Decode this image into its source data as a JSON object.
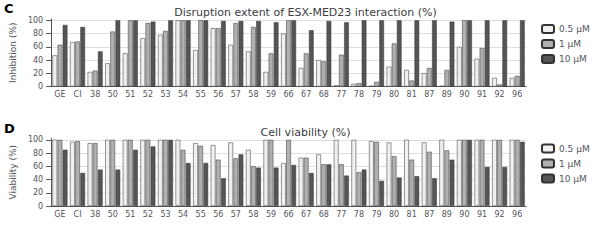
{
  "chart_data": [
    {
      "type": "bar",
      "title": "Disruption extent of ESX-MED23 interaction (%)",
      "ylabel": "Inhibition (%)",
      "panel_label": "C",
      "categories": [
        "GE",
        "CI",
        "38",
        "50",
        "51",
        "52",
        "53",
        "54",
        "55",
        "56",
        "57",
        "58",
        "59",
        "66",
        "67",
        "68",
        "77",
        "78",
        "79",
        "80",
        "81",
        "87",
        "89",
        "90",
        "91",
        "92",
        "96"
      ],
      "series": [
        {
          "name": "0.5 μM",
          "color": "#f0f0f0",
          "values": [
            47,
            67,
            22,
            35,
            50,
            73,
            78,
            100,
            55,
            88,
            63,
            53,
            22,
            80,
            28,
            40,
            2,
            4,
            1,
            30,
            25,
            20,
            1,
            60,
            42,
            13,
            13
          ]
        },
        {
          "name": "1 μM",
          "color": "#b0b0b0",
          "values": [
            63,
            68,
            24,
            83,
            100,
            96,
            84,
            100,
            100,
            88,
            96,
            90,
            50,
            100,
            50,
            38,
            48,
            5,
            7,
            65,
            9,
            28,
            25,
            100,
            58,
            3,
            16
          ]
        },
        {
          "name": "10 μM",
          "color": "#555555",
          "values": [
            93,
            90,
            53,
            100,
            100,
            98,
            100,
            100,
            100,
            99,
            99,
            99,
            97,
            100,
            85,
            99,
            97,
            100,
            100,
            100,
            100,
            100,
            98,
            100,
            100,
            100,
            100
          ]
        }
      ],
      "ylim": [
        0,
        102
      ],
      "yticks": [
        0,
        20,
        40,
        60,
        80,
        100
      ],
      "grid": true,
      "legend": "right"
    },
    {
      "type": "bar",
      "title": "Cell viability (%)",
      "ylabel": "Viability (%)",
      "panel_label": "D",
      "categories": [
        "GE",
        "CI",
        "38",
        "50",
        "51",
        "52",
        "53",
        "54",
        "55",
        "56",
        "57",
        "58",
        "59",
        "66",
        "67",
        "68",
        "77",
        "78",
        "79",
        "80",
        "81",
        "87",
        "89",
        "90",
        "91",
        "92",
        "96"
      ],
      "series": [
        {
          "name": "0.5 μM",
          "color": "#f0f0f0",
          "values": [
            100,
            97,
            95,
            100,
            100,
            100,
            100,
            100,
            95,
            92,
            96,
            85,
            100,
            65,
            73,
            78,
            100,
            100,
            98,
            96,
            100,
            96,
            100,
            100,
            100,
            100,
            100
          ]
        },
        {
          "name": "1 μM",
          "color": "#b0b0b0",
          "values": [
            100,
            98,
            95,
            100,
            100,
            100,
            100,
            85,
            91,
            70,
            72,
            60,
            100,
            100,
            73,
            63,
            63,
            51,
            97,
            75,
            70,
            82,
            84,
            100,
            100,
            100,
            100
          ]
        },
        {
          "name": "10 μM",
          "color": "#555555",
          "values": [
            85,
            50,
            55,
            55,
            85,
            90,
            100,
            65,
            65,
            42,
            78,
            58,
            58,
            62,
            50,
            63,
            46,
            55,
            38,
            43,
            45,
            42,
            70,
            100,
            59,
            59,
            97
          ]
        }
      ],
      "ylim": [
        0,
        102
      ],
      "yticks": [
        0,
        20,
        40,
        60,
        80,
        100
      ],
      "grid": true,
      "legend": "right"
    }
  ]
}
